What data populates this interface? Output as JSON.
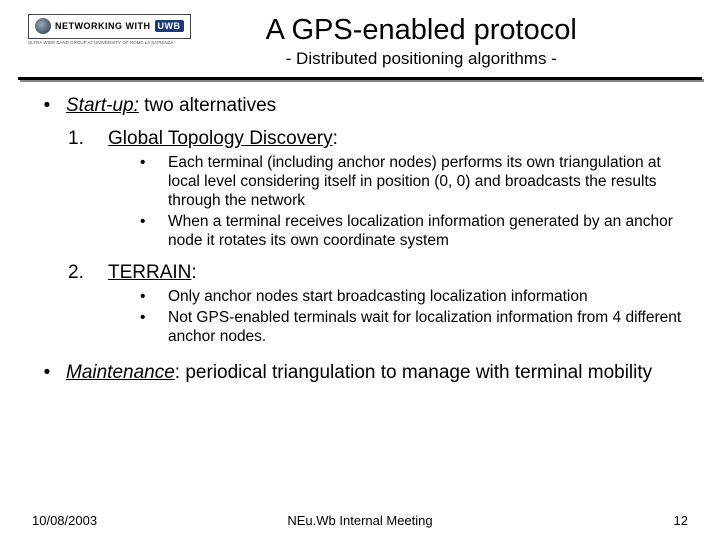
{
  "logo": {
    "text1": "NETWORKING WITH",
    "uwb": "UWB",
    "sub": "ULTRA WIDE BAND GROUP AT UNIVERSITY OF ROME LA SAPIENZA"
  },
  "title": "A GPS-enabled protocol",
  "subtitle": "- Distributed positioning algorithms -",
  "l1_startup_em": "Start-up:",
  "l1_startup_rest": " two alternatives",
  "l2_1_num": "1.",
  "l2_1_txt": "Global Topology Discovery",
  "l3_1a": "Each terminal (including anchor nodes) performs its own triangulation at local level considering itself in position (0, 0) and broadcasts the results through the network",
  "l3_1b": "When a terminal receives localization information generated by an anchor node it rotates its own coordinate system",
  "l2_2_num": "2.",
  "l2_2_txt": "TERRAIN",
  "l3_2a": "Only anchor nodes start broadcasting localization information",
  "l3_2b": "Not GPS-enabled terminals wait for localization information from 4 different anchor nodes.",
  "l1_maint_em": "Maintenance",
  "l1_maint_rest": ": periodical triangulation to manage with terminal mobility",
  "footer": {
    "date": "10/08/2003",
    "meeting": "NEu.Wb Internal Meeting",
    "page": "12"
  },
  "colors": {
    "rule": "#000000",
    "shadow": "#888888"
  }
}
